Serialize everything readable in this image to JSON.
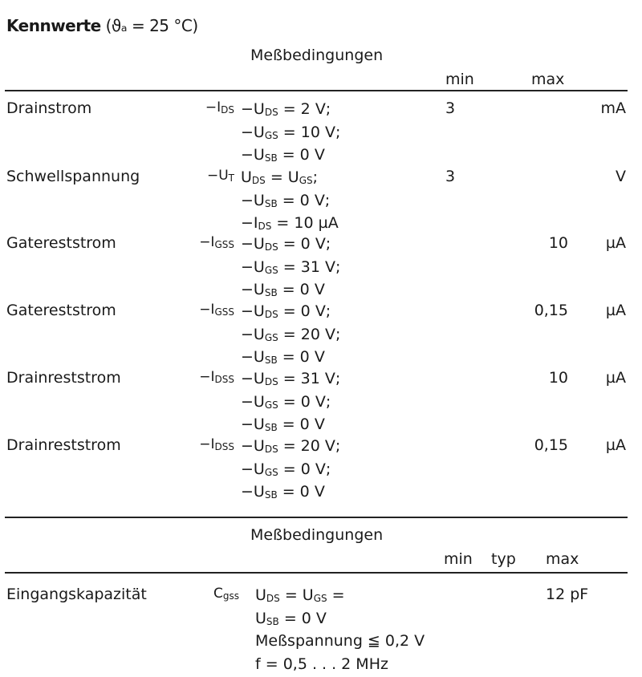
{
  "title": {
    "bold": "Kennwerte",
    "rest": " (ϑₐ = 25 °C)"
  },
  "table1": {
    "header_conditions": "Meßbedingungen",
    "header_min": "min",
    "header_max": "max",
    "rows": [
      {
        "name": "Drainstrom",
        "sym": "−I",
        "sym_sub": "DS",
        "cond": [
          {
            "p": "−U",
            "s": "DS",
            "r": " =  2 V;"
          },
          {
            "p": "−U",
            "s": "GS",
            "r": " = 10 V;"
          },
          {
            "p": "−U",
            "s": "SB",
            "r": " =  0 V"
          }
        ],
        "min": "3",
        "max": "",
        "unit": "mA"
      },
      {
        "name": "Schwellspannung",
        "sym": "−U",
        "sym_sub": "T",
        "cond": [
          {
            "p": "U",
            "s": "DS",
            "r": "  = U",
            "s2": "GS",
            "r2": ";"
          },
          {
            "p": "−U",
            "s": "SB",
            "r": " =  0 V;"
          },
          {
            "p": "−I",
            "s": "DS",
            "r": "  = 10 µA"
          }
        ],
        "min": "3",
        "max": "",
        "unit": "V"
      },
      {
        "name": "Gatereststrom",
        "sym": "−I",
        "sym_sub": "GSS",
        "cond": [
          {
            "p": "−U",
            "s": "DS",
            "r": " =  0 V;"
          },
          {
            "p": "−U",
            "s": "GS",
            "r": " = 31 V;"
          },
          {
            "p": "−U",
            "s": "SB",
            "r": " =  0 V"
          }
        ],
        "min": "",
        "max": "10",
        "unit": "µA"
      },
      {
        "name": "Gatereststrom",
        "sym": "−I",
        "sym_sub": "GSS",
        "cond": [
          {
            "p": "−U",
            "s": "DS",
            "r": " =  0 V;"
          },
          {
            "p": "−U",
            "s": "GS",
            "r": " = 20 V;"
          },
          {
            "p": "−U",
            "s": "SB",
            "r": " =  0 V"
          }
        ],
        "min": "",
        "max": "0,15",
        "unit": "µA"
      },
      {
        "name": "Drainreststrom",
        "sym": "−I",
        "sym_sub": "DSS",
        "cond": [
          {
            "p": "−U",
            "s": "DS",
            "r": " = 31 V;"
          },
          {
            "p": "−U",
            "s": "GS",
            "r": " =  0 V;"
          },
          {
            "p": "−U",
            "s": "SB",
            "r": " =  0 V"
          }
        ],
        "min": "",
        "max": "10",
        "unit": "µA"
      },
      {
        "name": "Drainreststrom",
        "sym": "−I",
        "sym_sub": "DSS",
        "cond": [
          {
            "p": "−U",
            "s": "DS",
            "r": " = 20 V;"
          },
          {
            "p": "−U",
            "s": "GS",
            "r": " =  0 V;"
          },
          {
            "p": "−U",
            "s": "SB",
            "r": " =  0 V"
          }
        ],
        "min": "",
        "max": "0,15",
        "unit": "µA"
      }
    ]
  },
  "table2": {
    "header_conditions": "Meßbedingungen",
    "header_min": "min",
    "header_typ": "typ",
    "header_max": "max",
    "rows": [
      {
        "name": "Eingangskapazität",
        "sym": "C",
        "sym_sub": "gss",
        "cond": [
          {
            "p": "U",
            "s": "DS",
            "r": " = U",
            "s2": "GS",
            "r2": " ="
          },
          {
            "p": "U",
            "s": "SB",
            "r": " = 0 V"
          },
          {
            "p": "Meßspannung ≦ 0,2 V",
            "s": "",
            "r": ""
          },
          {
            "p": "f = 0,5 . . . 2 MHz",
            "s": "",
            "r": ""
          }
        ],
        "min": "",
        "typ": "",
        "max": "12 pF"
      }
    ]
  }
}
